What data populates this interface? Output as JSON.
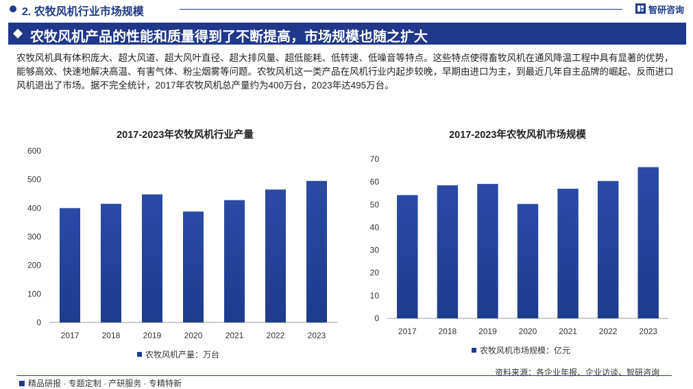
{
  "header": {
    "section_title": "2. 农牧风机行业市场规模",
    "brand": "智研咨询"
  },
  "banner": {
    "title": "农牧风机产品的性能和质量得到了不断提高，市场规模也随之扩大"
  },
  "intro": "农牧风机具有体积庞大、超大风道、超大风叶直径、超大排风量、超低能耗、低转速、低噪音等特点。这些特点使得畜牧风机在通风降温工程中具有显著的优势，能够高效、快速地解决高温、有害气体、粉尘烟雾等问题。农牧风机这一类产品在风机行业内起步较晚，早期由进口为主，到最近几年自主品牌的崛起、反而进口风机退出了市场。据不完全统计，2017年农牧风机总产量约为400万台，2023年达495万台。",
  "footer": {
    "tags": "精品研报 · 专题定制 · 产研服务 · 专精特新",
    "source": "资料来源：各企业年报、企业访谈、智研咨询"
  },
  "colors": {
    "bar": "#1f3b8c",
    "accent": "#1f3889"
  },
  "chart_data": [
    {
      "type": "bar",
      "title": "2017-2023年农牧风机行业产量",
      "categories": [
        "2017",
        "2018",
        "2019",
        "2020",
        "2021",
        "2022",
        "2023"
      ],
      "series": [
        {
          "name": "农牧风机产量：万台",
          "values": [
            400,
            415,
            448,
            388,
            428,
            465,
            495
          ]
        }
      ],
      "ylim": [
        0,
        600
      ],
      "yticks": [
        0,
        100,
        200,
        300,
        400,
        500,
        600
      ],
      "grid": false,
      "legend": "bottom"
    },
    {
      "type": "bar",
      "title": "2017-2023年农牧风机市场规模",
      "categories": [
        "2017",
        "2018",
        "2019",
        "2020",
        "2021",
        "2022",
        "2023"
      ],
      "series": [
        {
          "name": "农牧风机市场规模：亿元",
          "values": [
            54.2,
            58.5,
            59.1,
            50.3,
            57.0,
            60.4,
            66.5
          ]
        }
      ],
      "ylim": [
        0,
        70
      ],
      "yticks": [
        0,
        10,
        20,
        30,
        40,
        50,
        60,
        70
      ],
      "grid": false,
      "legend": "bottom"
    }
  ]
}
